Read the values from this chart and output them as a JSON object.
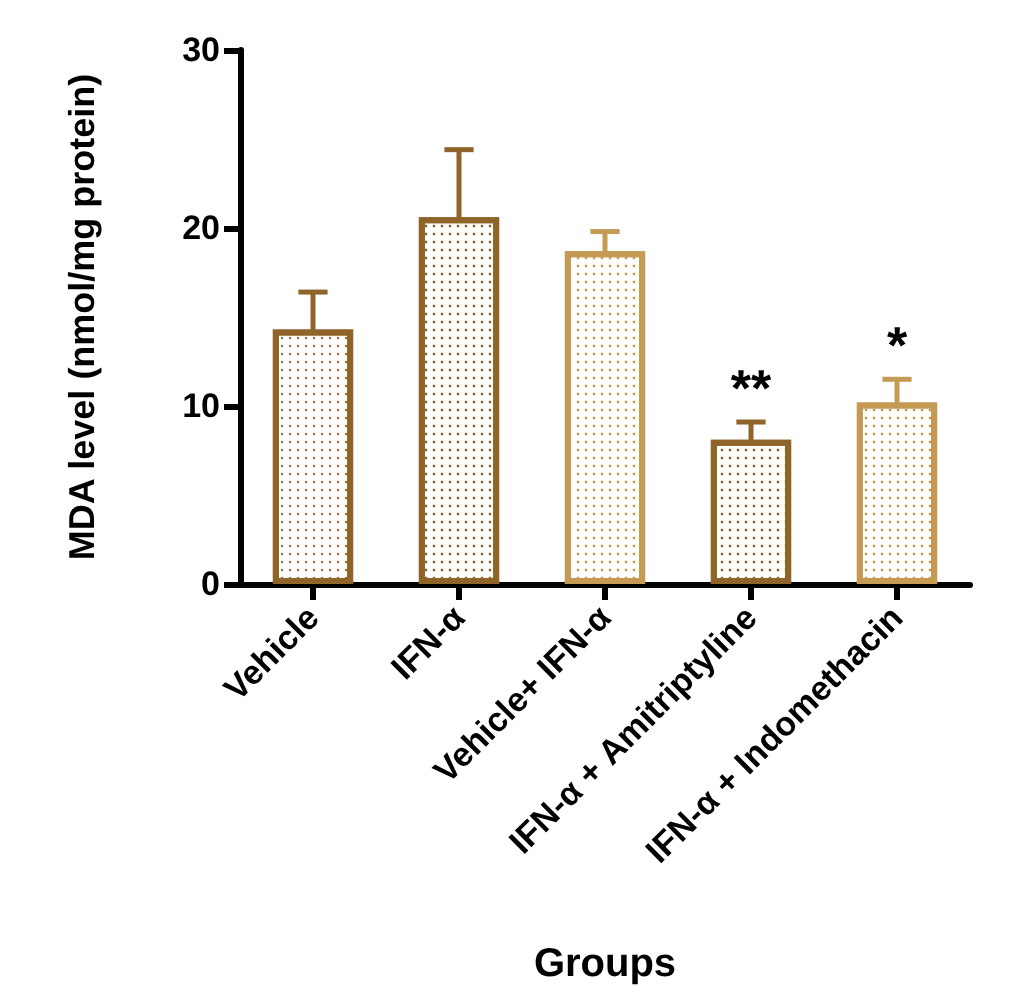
{
  "chart_data": {
    "type": "bar",
    "categories": [
      "Vehicle",
      "IFN-α",
      "Vehicle+ IFN-α",
      "IFN-α + Amitriptyline",
      "IFN-α + Indomethacin"
    ],
    "values": [
      14.3,
      20.6,
      18.7,
      8.1,
      10.2
    ],
    "errors": [
      2.1,
      3.8,
      1.1,
      1.0,
      1.3
    ],
    "colors": [
      "#8e6428",
      "#8e6428",
      "#c49a55",
      "#8e6428",
      "#c49a55"
    ],
    "xlabel": "Groups",
    "ylabel": "MDA level (nmol/mg protein)",
    "ylim": [
      0,
      30
    ],
    "yticks": [
      0,
      10,
      20,
      30
    ],
    "grid": false,
    "annotations": [
      {
        "text": "**",
        "x": "IFN-α + Amitriptyline",
        "y": 8.1
      },
      {
        "text": "*",
        "x": "IFN-α + Indomethacin",
        "y": 10.2
      }
    ]
  }
}
